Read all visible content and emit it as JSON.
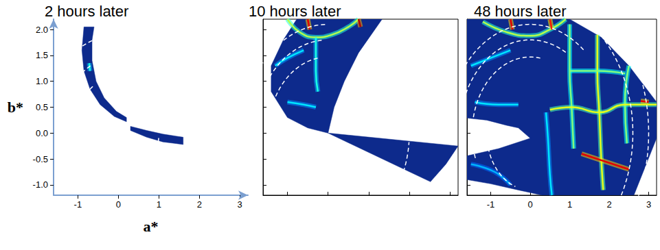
{
  "chart_data": [
    {
      "type": "heatmap",
      "title": "2 hours later",
      "x_label": "a*",
      "y_label": "b*",
      "xlim": [
        -1.6,
        3.2
      ],
      "ylim": [
        -1.2,
        2.2
      ],
      "xticks": [
        -1,
        0,
        1,
        2,
        3
      ],
      "yticks": [
        {
          "value": -1,
          "label": "-1.0"
        },
        {
          "value": -0.5,
          "label": "-0.5"
        },
        {
          "value": 0,
          "label": "0.0"
        },
        {
          "value": 0.5,
          "label": "0.5"
        },
        {
          "value": 1,
          "label": "1.0"
        },
        {
          "value": 1.5,
          "label": "1.5"
        },
        {
          "value": 2,
          "label": "2.0"
        }
      ],
      "grid": false,
      "color": "#0d2a8c",
      "intensity_range": [
        0,
        1
      ],
      "coverage": [
        [
          [
            -0.85,
            2.05
          ],
          [
            -0.9,
            1.6
          ],
          [
            -0.85,
            1.2
          ],
          [
            -0.7,
            0.85
          ],
          [
            -0.45,
            0.55
          ],
          [
            -0.1,
            0.32
          ],
          [
            0.2,
            0.22
          ],
          [
            0.2,
            0.3
          ],
          [
            -0.05,
            0.42
          ],
          [
            -0.35,
            0.68
          ],
          [
            -0.55,
            1.0
          ],
          [
            -0.65,
            1.4
          ],
          [
            -0.65,
            1.8
          ],
          [
            -0.6,
            2.05
          ]
        ],
        [
          [
            0.3,
            0.05
          ],
          [
            0.7,
            -0.08
          ],
          [
            1.1,
            -0.17
          ],
          [
            1.6,
            -0.22
          ],
          [
            1.6,
            -0.08
          ],
          [
            1.1,
            -0.02
          ],
          [
            0.7,
            0.05
          ],
          [
            0.3,
            0.13
          ]
        ]
      ],
      "features": [
        {
          "points": [
            [
              -0.72,
              1.35
            ],
            [
              -0.7,
              1.2
            ]
          ],
          "intensity": 0.4
        }
      ],
      "rings": [
        {
          "radius": 1.1,
          "from_deg": 125,
          "to_deg": 145
        },
        {
          "radius": 1.47,
          "from_deg": 118,
          "to_deg": 130
        },
        {
          "radius": 1.9,
          "from_deg": 105,
          "to_deg": 118
        },
        {
          "radius": 1.0,
          "from_deg": -10,
          "to_deg": -3
        }
      ]
    },
    {
      "type": "heatmap",
      "title": "10 hours later",
      "xlim": [
        -1.6,
        3.2
      ],
      "ylim": [
        -1.2,
        2.2
      ],
      "xticks": [
        -1,
        0,
        1,
        2,
        3
      ],
      "yticks": [
        {
          "value": -1,
          "label": "-1.0"
        },
        {
          "value": -0.5,
          "label": "-0.5"
        },
        {
          "value": 0,
          "label": "0.0"
        },
        {
          "value": 0.5,
          "label": "0.5"
        },
        {
          "value": 1,
          "label": "1.0"
        },
        {
          "value": 1.5,
          "label": "1.5"
        },
        {
          "value": 2,
          "label": "2.0"
        }
      ],
      "tick_labels": false,
      "grid": false,
      "color": "#0d2a8c",
      "intensity_range": [
        0,
        1
      ],
      "coverage": [
        [
          [
            -0.77,
            2.2
          ],
          [
            -1.1,
            1.8
          ],
          [
            -1.4,
            1.3
          ],
          [
            -1.4,
            0.8
          ],
          [
            -1.0,
            0.3
          ],
          [
            -0.5,
            0.1
          ],
          [
            0.0,
            0.0
          ],
          [
            0.15,
            0.5
          ],
          [
            0.4,
            1.0
          ],
          [
            0.75,
            1.55
          ],
          [
            1.33,
            2.2
          ]
        ],
        [
          [
            0.0,
            0.0
          ],
          [
            3.2,
            -0.25
          ],
          [
            2.9,
            -0.6
          ],
          [
            2.52,
            -0.94
          ]
        ]
      ],
      "features": [
        {
          "points": [
            [
              -1.0,
              2.2
            ],
            [
              -0.7,
              1.95
            ],
            [
              -0.3,
              1.85
            ],
            [
              0.1,
              1.9
            ],
            [
              0.5,
              2.05
            ],
            [
              0.75,
              2.2
            ]
          ],
          "intensity": 0.55
        },
        {
          "points": [
            [
              -0.5,
              2.2
            ],
            [
              -0.45,
              2.0
            ]
          ],
          "intensity": 0.9
        },
        {
          "points": [
            [
              0.75,
              2.2
            ],
            [
              0.8,
              2.05
            ]
          ],
          "intensity": 0.95
        },
        {
          "points": [
            [
              -1.3,
              1.3
            ],
            [
              -1.0,
              1.45
            ],
            [
              -0.6,
              1.6
            ]
          ],
          "intensity": 0.35
        },
        {
          "points": [
            [
              -0.3,
              1.85
            ],
            [
              -0.3,
              1.2
            ],
            [
              -0.25,
              0.8
            ]
          ],
          "intensity": 0.4
        },
        {
          "points": [
            [
              -1.0,
              0.6
            ],
            [
              -0.6,
              0.55
            ],
            [
              -0.3,
              0.5
            ]
          ],
          "intensity": 0.35
        }
      ],
      "rings": [
        {
          "radius": 1.47,
          "from_deg": 100,
          "to_deg": 160
        },
        {
          "radius": 1.8,
          "from_deg": 95,
          "to_deg": 150
        },
        {
          "radius": 2.1,
          "from_deg": 92,
          "to_deg": 140
        },
        {
          "radius": 2.0,
          "from_deg": -22,
          "to_deg": -5
        }
      ]
    },
    {
      "type": "heatmap",
      "title": "48 hours later",
      "xlim": [
        -1.6,
        3.2
      ],
      "ylim": [
        -1.2,
        2.2
      ],
      "xticks": [
        -1,
        0,
        1,
        2,
        3
      ],
      "yticks": [
        {
          "value": -1,
          "label": "-1.0"
        },
        {
          "value": -0.5,
          "label": "-0.5"
        },
        {
          "value": 0,
          "label": "0.0"
        },
        {
          "value": 0.5,
          "label": "0.5"
        },
        {
          "value": 1,
          "label": "1.0"
        },
        {
          "value": 1.5,
          "label": "1.5"
        },
        {
          "value": 2,
          "label": "2.0"
        }
      ],
      "tick_labels": "x",
      "grid": false,
      "color": "#0d2a8c",
      "intensity_range": [
        0,
        1
      ],
      "coverage": [
        [
          [
            -1.6,
            2.2
          ],
          [
            1.0,
            2.2
          ],
          [
            1.8,
            1.85
          ],
          [
            2.5,
            1.3
          ],
          [
            3.2,
            0.6
          ],
          [
            3.2,
            -0.1
          ],
          [
            2.6,
            -1.25
          ],
          [
            0.6,
            -1.25
          ],
          [
            -0.3,
            -1.1
          ],
          [
            -1.0,
            -0.98
          ],
          [
            -1.6,
            -0.9
          ],
          [
            -1.6,
            -0.44
          ],
          [
            -0.8,
            -0.3
          ],
          [
            0.0,
            -0.1
          ],
          [
            -0.3,
            0.1
          ],
          [
            -0.6,
            0.15
          ],
          [
            -1.1,
            0.25
          ],
          [
            -1.6,
            0.29
          ]
        ]
      ],
      "features": [
        {
          "points": [
            [
              -1.2,
              2.15
            ],
            [
              -0.6,
              1.95
            ],
            [
              0.0,
              1.88
            ],
            [
              0.5,
              2.0
            ],
            [
              0.9,
              2.2
            ]
          ],
          "intensity": 0.55
        },
        {
          "points": [
            [
              -0.5,
              2.2
            ],
            [
              -0.45,
              2.0
            ]
          ],
          "intensity": 0.9
        },
        {
          "points": [
            [
              0.5,
              2.2
            ],
            [
              0.55,
              2.0
            ]
          ],
          "intensity": 0.85
        },
        {
          "points": [
            [
              1.0,
              2.1
            ],
            [
              1.0,
              1.2
            ],
            [
              1.05,
              0.5
            ],
            [
              1.1,
              -0.3
            ]
          ],
          "intensity": 0.5
        },
        {
          "points": [
            [
              1.7,
              1.9
            ],
            [
              1.7,
              1.2
            ],
            [
              1.75,
              0.4
            ],
            [
              1.8,
              -0.5
            ],
            [
              1.85,
              -1.1
            ]
          ],
          "intensity": 0.6
        },
        {
          "points": [
            [
              2.5,
              1.3
            ],
            [
              2.4,
              0.6
            ],
            [
              2.45,
              -0.2
            ]
          ],
          "intensity": 0.5
        },
        {
          "points": [
            [
              1.0,
              1.2
            ],
            [
              1.7,
              1.2
            ],
            [
              2.4,
              1.15
            ]
          ],
          "intensity": 0.5
        },
        {
          "points": [
            [
              0.5,
              0.45
            ],
            [
              1.05,
              0.5
            ],
            [
              1.75,
              0.4
            ],
            [
              2.4,
              0.55
            ],
            [
              3.2,
              0.55
            ]
          ],
          "intensity": 0.6
        },
        {
          "points": [
            [
              2.8,
              0.62
            ],
            [
              3.0,
              0.6
            ]
          ],
          "intensity": 0.9
        },
        {
          "points": [
            [
              1.3,
              -0.4
            ],
            [
              1.9,
              -0.55
            ],
            [
              2.5,
              -0.7
            ]
          ],
          "intensity": 0.9
        },
        {
          "points": [
            [
              -1.5,
              1.3
            ],
            [
              -1.0,
              1.45
            ],
            [
              -0.5,
              1.6
            ]
          ],
          "intensity": 0.35
        },
        {
          "points": [
            [
              -1.4,
              0.6
            ],
            [
              -0.8,
              0.55
            ],
            [
              -0.3,
              0.55
            ]
          ],
          "intensity": 0.35
        },
        {
          "points": [
            [
              0.4,
              0.4
            ],
            [
              0.45,
              -0.1
            ],
            [
              0.5,
              -0.8
            ],
            [
              0.55,
              -1.2
            ]
          ],
          "intensity": 0.35
        },
        {
          "points": [
            [
              -1.5,
              -0.6
            ],
            [
              -0.9,
              -0.75
            ],
            [
              -0.5,
              -1.0
            ]
          ],
          "intensity": 0.3
        }
      ],
      "rings": [
        {
          "radius": 1.47,
          "from_deg": 80,
          "to_deg": 200
        },
        {
          "radius": 1.8,
          "from_deg": 60,
          "to_deg": 190
        },
        {
          "radius": 2.1,
          "from_deg": 50,
          "to_deg": 160
        },
        {
          "radius": 2.6,
          "from_deg": -40,
          "to_deg": 45
        },
        {
          "radius": 3.0,
          "from_deg": -35,
          "to_deg": 30
        },
        {
          "radius": 1.1,
          "from_deg": 195,
          "to_deg": 250
        }
      ]
    }
  ]
}
